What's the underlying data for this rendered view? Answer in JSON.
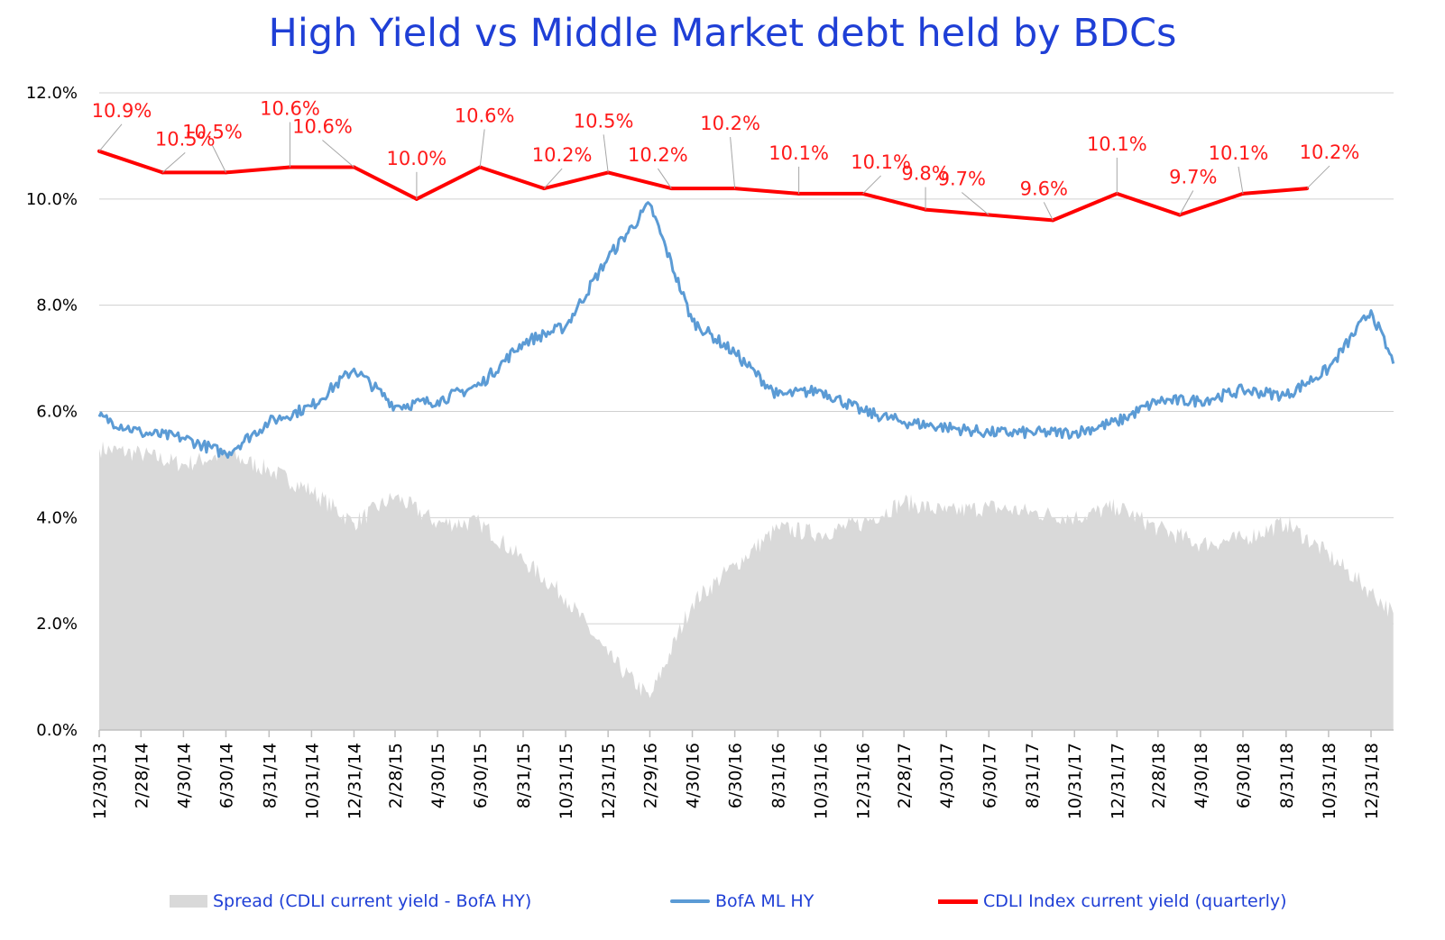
{
  "chart_data": {
    "type": "line",
    "title": "High Yield  vs  Middle Market debt held by BDCs",
    "xlabel": "",
    "ylabel": "",
    "ylim": [
      0,
      12
    ],
    "y_ticks": [
      "0.0%",
      "2.0%",
      "4.0%",
      "6.0%",
      "8.0%",
      "10.0%",
      "12.0%"
    ],
    "x_ticks": [
      "12/30/13",
      "2/28/14",
      "4/30/14",
      "6/30/14",
      "8/31/14",
      "10/31/14",
      "12/31/14",
      "2/28/15",
      "4/30/15",
      "6/30/15",
      "8/31/15",
      "10/31/15",
      "12/31/15",
      "2/29/16",
      "4/30/16",
      "6/30/16",
      "8/31/16",
      "10/31/16",
      "12/31/16",
      "2/28/17",
      "4/30/17",
      "6/30/17",
      "8/31/17",
      "10/31/17",
      "12/31/17",
      "2/28/18",
      "4/30/18",
      "6/30/18",
      "8/31/18",
      "10/31/18",
      "12/31/18"
    ],
    "grid": true,
    "legend_position": "bottom",
    "series": [
      {
        "name": "Spread (CDLI current yield - BofA HY)",
        "kind": "area",
        "color": "#d9d9d9",
        "points": [
          [
            "12/30/13",
            5.3
          ],
          [
            "2/28/14",
            5.2
          ],
          [
            "4/30/14",
            5.0
          ],
          [
            "6/30/14",
            5.2
          ],
          [
            "8/31/14",
            4.9
          ],
          [
            "10/31/14",
            4.5
          ],
          [
            "12/31/14",
            3.9
          ],
          [
            "2/28/15",
            4.4
          ],
          [
            "4/30/15",
            3.9
          ],
          [
            "6/30/15",
            3.9
          ],
          [
            "8/31/15",
            3.2
          ],
          [
            "10/31/15",
            2.5
          ],
          [
            "12/31/15",
            1.4
          ],
          [
            "2/29/16",
            0.6
          ],
          [
            "4/30/16",
            2.4
          ],
          [
            "6/30/16",
            3.1
          ],
          [
            "8/31/16",
            3.8
          ],
          [
            "10/31/16",
            3.7
          ],
          [
            "12/31/16",
            3.9
          ],
          [
            "2/28/17",
            4.3
          ],
          [
            "4/30/17",
            4.1
          ],
          [
            "6/30/17",
            4.2
          ],
          [
            "8/31/17",
            4.1
          ],
          [
            "10/31/17",
            4.0
          ],
          [
            "12/31/17",
            4.2
          ],
          [
            "2/28/18",
            3.8
          ],
          [
            "4/30/18",
            3.5
          ],
          [
            "6/30/18",
            3.6
          ],
          [
            "8/31/18",
            3.9
          ],
          [
            "10/31/18",
            3.3
          ],
          [
            "12/31/18",
            2.6
          ],
          [
            "2/1/19",
            2.2
          ]
        ]
      },
      {
        "name": "BofA ML HY",
        "kind": "line",
        "color": "#5b9bd5",
        "points": [
          [
            "12/30/13",
            5.9
          ],
          [
            "2/28/14",
            5.6
          ],
          [
            "4/30/14",
            5.5
          ],
          [
            "6/30/14",
            5.2
          ],
          [
            "8/31/14",
            5.8
          ],
          [
            "10/31/14",
            6.1
          ],
          [
            "12/31/14",
            6.8
          ],
          [
            "2/28/15",
            6.1
          ],
          [
            "4/30/15",
            6.2
          ],
          [
            "6/30/15",
            6.5
          ],
          [
            "8/31/15",
            7.3
          ],
          [
            "10/31/15",
            7.6
          ],
          [
            "12/31/15",
            8.9
          ],
          [
            "2/29/16",
            9.9
          ],
          [
            "4/30/16",
            7.7
          ],
          [
            "6/30/16",
            7.1
          ],
          [
            "8/31/16",
            6.3
          ],
          [
            "10/31/16",
            6.4
          ],
          [
            "12/31/16",
            6.0
          ],
          [
            "2/28/17",
            5.8
          ],
          [
            "4/30/17",
            5.7
          ],
          [
            "6/30/17",
            5.6
          ],
          [
            "8/31/17",
            5.6
          ],
          [
            "10/31/17",
            5.6
          ],
          [
            "12/31/17",
            5.8
          ],
          [
            "2/28/18",
            6.2
          ],
          [
            "4/30/18",
            6.2
          ],
          [
            "6/30/18",
            6.4
          ],
          [
            "8/31/18",
            6.3
          ],
          [
            "10/31/18",
            6.8
          ],
          [
            "12/31/18",
            7.9
          ],
          [
            "2/1/19",
            6.9
          ]
        ]
      },
      {
        "name": "CDLI Index current yield (quarterly)",
        "kind": "line",
        "color": "#ff0000",
        "points": [
          [
            "12/30/13",
            10.9
          ],
          [
            "3/31/14",
            10.5
          ],
          [
            "6/30/14",
            10.5
          ],
          [
            "9/30/14",
            10.6
          ],
          [
            "12/31/14",
            10.6
          ],
          [
            "3/31/15",
            10.0
          ],
          [
            "6/30/15",
            10.6
          ],
          [
            "9/30/15",
            10.2
          ],
          [
            "12/31/15",
            10.5
          ],
          [
            "3/31/16",
            10.2
          ],
          [
            "6/30/16",
            10.2
          ],
          [
            "9/30/16",
            10.1
          ],
          [
            "12/31/16",
            10.1
          ],
          [
            "3/31/17",
            9.8
          ],
          [
            "6/30/17",
            9.7
          ],
          [
            "9/30/17",
            9.6
          ],
          [
            "12/31/17",
            10.1
          ],
          [
            "3/31/18",
            9.7
          ],
          [
            "6/30/18",
            10.1
          ],
          [
            "9/30/18",
            10.2
          ]
        ],
        "data_labels": [
          "10.9%",
          "10.5%",
          "10.5%",
          "10.6%",
          "10.6%",
          "10.0%",
          "10.6%",
          "10.2%",
          "10.5%",
          "10.2%",
          "10.2%",
          "10.1%",
          "10.1%",
          "9.8%",
          "9.7%",
          "9.6%",
          "10.1%",
          "9.7%",
          "10.1%",
          "10.2%"
        ]
      }
    ]
  }
}
